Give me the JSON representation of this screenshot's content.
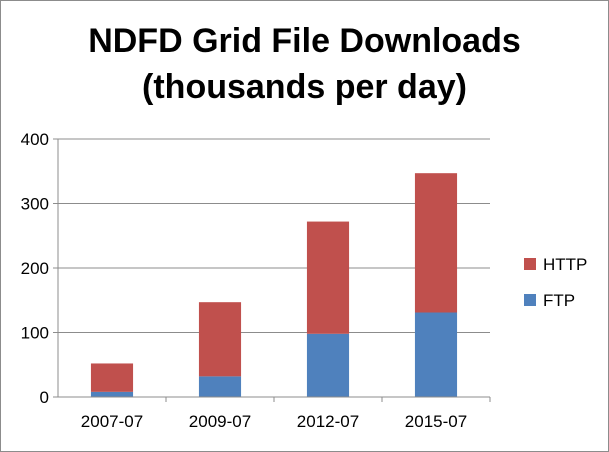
{
  "chart_data": {
    "type": "bar",
    "stacked": true,
    "title_lines": [
      "NDFD Grid File Downloads",
      "(thousands per day)"
    ],
    "categories": [
      "2007-07",
      "2009-07",
      "2012-07",
      "2015-07"
    ],
    "series": [
      {
        "name": "FTP",
        "values": [
          8,
          32,
          98,
          131
        ],
        "color": "#4f81bd"
      },
      {
        "name": "HTTP",
        "values": [
          44,
          115,
          174,
          216
        ],
        "color": "#c0504d"
      }
    ],
    "ylim": [
      0,
      400
    ],
    "yticks": [
      0,
      100,
      200,
      300,
      400
    ],
    "grid": true,
    "legend": "right"
  }
}
